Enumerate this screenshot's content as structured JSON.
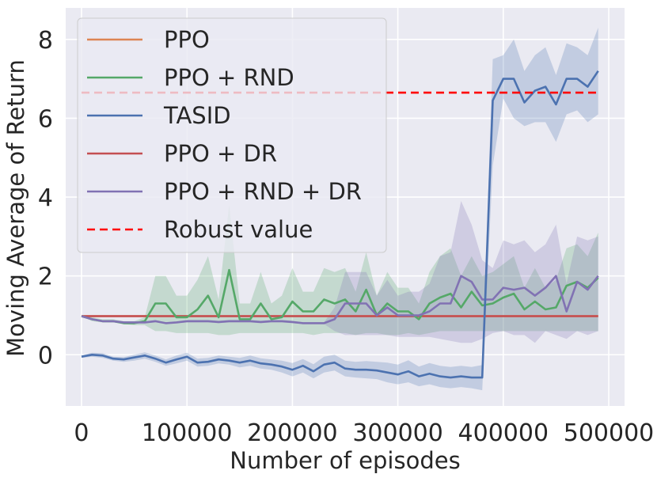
{
  "chart_data": {
    "type": "line",
    "title": "",
    "xlabel": "Number of episodes",
    "ylabel": "Moving Average of Return",
    "xlim": [
      -15000,
      515000
    ],
    "ylim": [
      -1.3,
      8.8
    ],
    "xticks": [
      0,
      100000,
      200000,
      300000,
      400000,
      500000
    ],
    "xtick_labels": [
      "0",
      "100000",
      "200000",
      "300000",
      "400000",
      "500000"
    ],
    "yticks": [
      0,
      2,
      4,
      6,
      8
    ],
    "ytick_labels": [
      "0",
      "2",
      "4",
      "6",
      "8"
    ],
    "grid": true,
    "legend_position": "top-left",
    "x": [
      0,
      10000,
      20000,
      30000,
      40000,
      50000,
      60000,
      70000,
      80000,
      90000,
      100000,
      110000,
      120000,
      130000,
      140000,
      150000,
      160000,
      170000,
      180000,
      190000,
      200000,
      210000,
      220000,
      230000,
      240000,
      250000,
      260000,
      270000,
      280000,
      290000,
      300000,
      310000,
      320000,
      330000,
      340000,
      350000,
      360000,
      370000,
      380000,
      390000,
      400000,
      410000,
      420000,
      430000,
      440000,
      450000,
      460000,
      470000,
      480000,
      490000
    ],
    "series": [
      {
        "name": "PPO",
        "color": "#dd8452",
        "style": "solid",
        "values": [
          0.98,
          0.98,
          0.98,
          0.98,
          0.98,
          0.98,
          0.98,
          0.98,
          0.98,
          0.98,
          0.98,
          0.98,
          0.98,
          0.98,
          0.98,
          0.98,
          0.98,
          0.98,
          0.98,
          0.98,
          0.98,
          0.98,
          0.98,
          0.98,
          0.98,
          0.98,
          0.98,
          0.98,
          0.98,
          0.98,
          0.98,
          0.98,
          0.98,
          0.98,
          0.98,
          0.98,
          0.98,
          0.98,
          0.98,
          0.98,
          0.98,
          0.98,
          0.98,
          0.98,
          0.98,
          0.98,
          0.98,
          0.98,
          0.98,
          0.98
        ]
      },
      {
        "name": "PPO + RND",
        "color": "#55a868",
        "style": "solid",
        "values": [
          0.98,
          0.9,
          0.85,
          0.85,
          0.8,
          0.8,
          0.85,
          1.3,
          1.3,
          0.95,
          0.95,
          1.15,
          1.5,
          0.95,
          2.15,
          0.9,
          0.9,
          1.3,
          0.9,
          0.95,
          1.35,
          1.1,
          1.1,
          1.4,
          1.3,
          1.4,
          1.1,
          1.65,
          1.0,
          1.3,
          1.1,
          1.1,
          0.9,
          1.3,
          1.45,
          1.55,
          1.2,
          1.6,
          1.25,
          1.3,
          1.45,
          1.55,
          1.15,
          1.35,
          1.15,
          1.2,
          1.75,
          1.85,
          1.7,
          1.95
        ]
      },
      {
        "name": "TASID",
        "color": "#4c72b0",
        "style": "solid",
        "values": [
          -0.05,
          0.0,
          -0.02,
          -0.1,
          -0.12,
          -0.07,
          -0.02,
          -0.1,
          -0.2,
          -0.12,
          -0.05,
          -0.2,
          -0.18,
          -0.12,
          -0.15,
          -0.2,
          -0.15,
          -0.22,
          -0.25,
          -0.3,
          -0.38,
          -0.28,
          -0.42,
          -0.25,
          -0.2,
          -0.35,
          -0.38,
          -0.38,
          -0.4,
          -0.45,
          -0.5,
          -0.42,
          -0.55,
          -0.48,
          -0.55,
          -0.58,
          -0.55,
          -0.58,
          -0.58,
          6.45,
          7.0,
          7.0,
          6.4,
          6.7,
          6.8,
          6.35,
          7.0,
          7.0,
          6.8,
          7.2
        ]
      },
      {
        "name": "PPO + DR",
        "color": "#c44e52",
        "style": "solid",
        "values": [
          0.98,
          0.98,
          0.98,
          0.98,
          0.98,
          0.98,
          0.98,
          0.98,
          0.98,
          0.98,
          0.98,
          0.98,
          0.98,
          0.98,
          0.98,
          0.98,
          0.98,
          0.98,
          0.98,
          0.98,
          0.98,
          0.98,
          0.98,
          0.98,
          0.98,
          0.98,
          0.98,
          0.98,
          0.98,
          0.98,
          0.98,
          0.98,
          0.98,
          0.98,
          0.98,
          0.98,
          0.98,
          0.98,
          0.98,
          0.98,
          0.98,
          0.98,
          0.98,
          0.98,
          0.98,
          0.98,
          0.98,
          0.98,
          0.98,
          0.98
        ]
      },
      {
        "name": "PPO + RND + DR",
        "color": "#8172b3",
        "style": "solid",
        "values": [
          0.98,
          0.9,
          0.85,
          0.85,
          0.82,
          0.82,
          0.82,
          0.85,
          0.8,
          0.82,
          0.85,
          0.85,
          0.85,
          0.83,
          0.85,
          0.85,
          0.85,
          0.83,
          0.85,
          0.85,
          0.83,
          0.8,
          0.8,
          0.8,
          0.9,
          1.3,
          1.3,
          1.3,
          1.0,
          1.2,
          1.0,
          1.0,
          1.0,
          1.1,
          1.3,
          1.3,
          2.0,
          1.85,
          1.4,
          1.4,
          1.7,
          1.65,
          1.7,
          1.5,
          1.7,
          2.0,
          1.1,
          1.85,
          1.65,
          2.0
        ]
      },
      {
        "name": "Robust value",
        "color": "#ff0000",
        "style": "dashed",
        "values": [
          6.65,
          6.65,
          6.65,
          6.65,
          6.65,
          6.65,
          6.65,
          6.65,
          6.65,
          6.65,
          6.65,
          6.65,
          6.65,
          6.65,
          6.65,
          6.65,
          6.65,
          6.65,
          6.65,
          6.65,
          6.65,
          6.65,
          6.65,
          6.65,
          6.65,
          6.65,
          6.65,
          6.65,
          6.65,
          6.65,
          6.65,
          6.65,
          6.65,
          6.65,
          6.65,
          6.65,
          6.65,
          6.65,
          6.65,
          6.65,
          6.65,
          6.65,
          6.65,
          6.65,
          6.65,
          6.65,
          6.65,
          6.65,
          6.65,
          6.65
        ]
      }
    ],
    "bands": [
      {
        "series": "PPO + RND",
        "color": "#55a868",
        "lower": [
          0.98,
          0.85,
          0.82,
          0.82,
          0.78,
          0.75,
          0.75,
          0.6,
          0.6,
          0.55,
          0.55,
          0.55,
          0.55,
          0.5,
          0.5,
          0.55,
          0.55,
          0.55,
          0.55,
          0.55,
          0.55,
          0.55,
          0.5,
          0.55,
          0.55,
          0.55,
          0.5,
          0.55,
          0.55,
          0.5,
          0.5,
          0.55,
          0.5,
          0.55,
          0.6,
          0.6,
          0.6,
          0.6,
          0.6,
          0.6,
          0.6,
          0.6,
          0.6,
          0.6,
          0.6,
          0.6,
          0.6,
          0.6,
          0.6,
          0.6
        ],
        "upper": [
          0.98,
          0.95,
          0.9,
          0.9,
          0.85,
          0.85,
          0.95,
          2.0,
          2.0,
          1.5,
          1.5,
          1.9,
          2.5,
          1.4,
          3.8,
          1.3,
          1.3,
          2.1,
          1.3,
          1.5,
          2.2,
          1.6,
          1.6,
          2.2,
          2.1,
          2.2,
          1.6,
          2.6,
          1.5,
          2.1,
          1.7,
          1.7,
          1.3,
          2.1,
          2.5,
          2.7,
          2.0,
          2.5,
          2.0,
          2.1,
          2.3,
          2.5,
          1.7,
          2.2,
          1.7,
          1.9,
          2.7,
          2.8,
          2.5,
          3.1
        ]
      },
      {
        "series": "TASID",
        "color": "#4c72b0",
        "lower": [
          -0.08,
          -0.05,
          -0.08,
          -0.15,
          -0.18,
          -0.15,
          -0.1,
          -0.18,
          -0.28,
          -0.22,
          -0.15,
          -0.3,
          -0.28,
          -0.22,
          -0.25,
          -0.32,
          -0.28,
          -0.35,
          -0.38,
          -0.45,
          -0.55,
          -0.45,
          -0.6,
          -0.45,
          -0.4,
          -0.55,
          -0.58,
          -0.6,
          -0.62,
          -0.7,
          -0.75,
          -0.7,
          -0.8,
          -0.75,
          -0.82,
          -0.85,
          -0.82,
          -0.85,
          -0.9,
          4.8,
          6.5,
          6.0,
          5.8,
          5.9,
          5.9,
          5.4,
          6.1,
          6.2,
          5.9,
          6.1
        ],
        "upper": [
          -0.02,
          0.05,
          0.04,
          -0.05,
          -0.06,
          0.0,
          0.06,
          -0.02,
          -0.12,
          -0.02,
          0.05,
          -0.1,
          -0.08,
          -0.02,
          -0.05,
          -0.08,
          -0.02,
          -0.09,
          -0.12,
          -0.15,
          -0.21,
          -0.11,
          -0.24,
          -0.05,
          0.0,
          -0.15,
          -0.18,
          -0.16,
          -0.18,
          -0.2,
          -0.25,
          -0.14,
          -0.3,
          -0.21,
          -0.28,
          -0.31,
          -0.28,
          -0.31,
          -0.26,
          7.5,
          7.6,
          8.0,
          7.2,
          7.6,
          7.8,
          7.1,
          7.9,
          7.8,
          7.6,
          8.3
        ]
      },
      {
        "series": "PPO + RND + DR",
        "color": "#8172b3",
        "lower": [
          0.98,
          0.88,
          0.83,
          0.82,
          0.8,
          0.8,
          0.8,
          0.82,
          0.78,
          0.8,
          0.82,
          0.82,
          0.82,
          0.8,
          0.82,
          0.82,
          0.82,
          0.8,
          0.82,
          0.82,
          0.8,
          0.78,
          0.78,
          0.78,
          0.6,
          0.5,
          0.5,
          0.5,
          0.5,
          0.5,
          0.45,
          0.45,
          0.45,
          0.45,
          0.4,
          0.35,
          0.3,
          0.3,
          0.4,
          0.55,
          0.6,
          0.5,
          0.5,
          0.3,
          0.6,
          0.5,
          0.4,
          0.6,
          0.5,
          0.6
        ],
        "upper": [
          0.98,
          0.92,
          0.87,
          0.88,
          0.84,
          0.84,
          0.84,
          0.88,
          0.82,
          0.84,
          0.88,
          0.88,
          0.88,
          0.86,
          0.88,
          0.88,
          0.88,
          0.86,
          0.88,
          0.88,
          0.86,
          0.82,
          0.82,
          0.82,
          1.2,
          2.1,
          2.1,
          2.1,
          1.5,
          1.9,
          1.5,
          1.6,
          1.6,
          1.8,
          2.5,
          2.6,
          3.9,
          3.3,
          2.4,
          2.2,
          2.9,
          2.8,
          2.9,
          2.6,
          2.8,
          3.3,
          1.8,
          3.0,
          2.9,
          3.0
        ]
      }
    ]
  }
}
